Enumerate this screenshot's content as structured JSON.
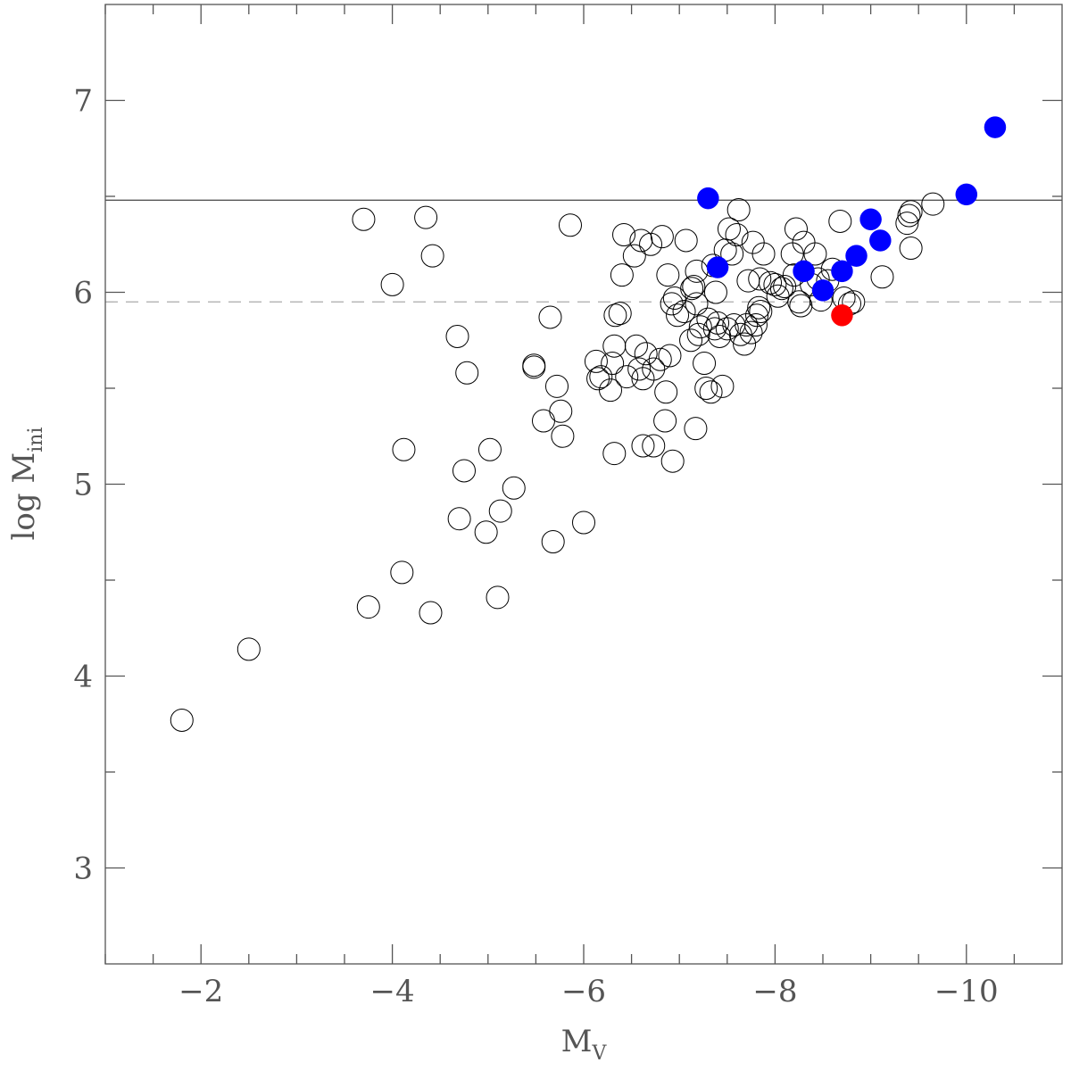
{
  "chart_data": {
    "type": "scatter",
    "title": "",
    "xlabel": "M",
    "xlabel_sub": "V",
    "ylabel": "log M",
    "ylabel_sub": "ini",
    "xlim": [
      -1.0,
      -11.0
    ],
    "ylim": [
      2.5,
      7.5
    ],
    "x_ticks": [
      -2,
      -4,
      -6,
      -8,
      -10
    ],
    "x_tick_labels": [
      "−2",
      "−4",
      "−6",
      "−8",
      "−10"
    ],
    "y_ticks": [
      3,
      4,
      5,
      6,
      7
    ],
    "y_tick_labels": [
      "3",
      "4",
      "5",
      "6",
      "7"
    ],
    "grid": false,
    "reference_lines": [
      {
        "orientation": "horizontal",
        "y": 6.48,
        "style": "solid",
        "color": "#555555"
      },
      {
        "orientation": "horizontal",
        "y": 5.95,
        "style": "dashed",
        "color": "#aaaaaa"
      }
    ],
    "series": [
      {
        "marker": "open-circle",
        "color": "#000000",
        "points": [
          [
            -1.8,
            3.77
          ],
          [
            -2.5,
            4.14
          ],
          [
            -3.75,
            4.36
          ],
          [
            -3.7,
            6.38
          ],
          [
            -4.0,
            6.04
          ],
          [
            -4.1,
            4.54
          ],
          [
            -4.12,
            5.18
          ],
          [
            -4.35,
            6.39
          ],
          [
            -4.4,
            4.33
          ],
          [
            -4.42,
            6.19
          ],
          [
            -4.68,
            5.77
          ],
          [
            -4.7,
            4.82
          ],
          [
            -4.75,
            5.07
          ],
          [
            -4.78,
            5.58
          ],
          [
            -4.98,
            4.75
          ],
          [
            -5.02,
            5.18
          ],
          [
            -5.1,
            4.41
          ],
          [
            -5.13,
            4.86
          ],
          [
            -5.27,
            4.98
          ],
          [
            -5.48,
            5.61
          ],
          [
            -5.48,
            5.62
          ],
          [
            -5.58,
            5.33
          ],
          [
            -5.65,
            5.87
          ],
          [
            -5.68,
            4.7
          ],
          [
            -5.72,
            5.51
          ],
          [
            -5.76,
            5.38
          ],
          [
            -5.78,
            5.25
          ],
          [
            -5.86,
            6.35
          ],
          [
            -6.0,
            4.8
          ],
          [
            -6.13,
            5.64
          ],
          [
            -6.15,
            5.55
          ],
          [
            -6.18,
            5.56
          ],
          [
            -6.28,
            5.49
          ],
          [
            -6.3,
            5.63
          ],
          [
            -6.32,
            5.16
          ],
          [
            -6.32,
            5.72
          ],
          [
            -6.33,
            5.88
          ],
          [
            -6.38,
            5.89
          ],
          [
            -6.4,
            6.09
          ],
          [
            -6.42,
            6.3
          ],
          [
            -6.45,
            5.56
          ],
          [
            -6.53,
            6.19
          ],
          [
            -6.55,
            5.72
          ],
          [
            -6.58,
            5.6
          ],
          [
            -6.6,
            6.27
          ],
          [
            -6.62,
            5.2
          ],
          [
            -6.62,
            5.55
          ],
          [
            -6.65,
            5.68
          ],
          [
            -6.7,
            6.25
          ],
          [
            -6.73,
            5.2
          ],
          [
            -6.73,
            5.6
          ],
          [
            -6.8,
            5.65
          ],
          [
            -6.82,
            6.29
          ],
          [
            -6.85,
            5.33
          ],
          [
            -6.86,
            5.48
          ],
          [
            -6.88,
            6.09
          ],
          [
            -6.9,
            5.67
          ],
          [
            -6.92,
            5.94
          ],
          [
            -6.93,
            5.12
          ],
          [
            -6.95,
            5.97
          ],
          [
            -6.98,
            5.88
          ],
          [
            -7.05,
            5.9
          ],
          [
            -7.07,
            6.27
          ],
          [
            -7.12,
            5.75
          ],
          [
            -7.13,
            6.02
          ],
          [
            -7.15,
            6.03
          ],
          [
            -7.17,
            5.29
          ],
          [
            -7.18,
            5.94
          ],
          [
            -7.18,
            6.11
          ],
          [
            -7.2,
            5.78
          ],
          [
            -7.22,
            5.82
          ],
          [
            -7.26,
            5.63
          ],
          [
            -7.28,
            5.5
          ],
          [
            -7.3,
            5.86
          ],
          [
            -7.33,
            5.48
          ],
          [
            -7.35,
            6.14
          ],
          [
            -7.37,
            5.81
          ],
          [
            -7.38,
            6.0
          ],
          [
            -7.4,
            5.84
          ],
          [
            -7.42,
            5.77
          ],
          [
            -7.45,
            5.51
          ],
          [
            -7.48,
            6.22
          ],
          [
            -7.5,
            5.81
          ],
          [
            -7.52,
            6.33
          ],
          [
            -7.55,
            6.2
          ],
          [
            -7.57,
            5.83
          ],
          [
            -7.6,
            6.3
          ],
          [
            -7.62,
            6.43
          ],
          [
            -7.64,
            5.78
          ],
          [
            -7.68,
            5.73
          ],
          [
            -7.7,
            5.83
          ],
          [
            -7.72,
            6.06
          ],
          [
            -7.75,
            5.79
          ],
          [
            -7.77,
            6.26
          ],
          [
            -7.8,
            5.83
          ],
          [
            -7.81,
            5.88
          ],
          [
            -7.83,
            5.92
          ],
          [
            -7.84,
            6.07
          ],
          [
            -7.85,
            5.9
          ],
          [
            -7.88,
            6.2
          ],
          [
            -7.95,
            6.05
          ],
          [
            -8.0,
            6.04
          ],
          [
            -8.03,
            5.98
          ],
          [
            -8.07,
            6.02
          ],
          [
            -8.1,
            6.03
          ],
          [
            -8.18,
            6.2
          ],
          [
            -8.2,
            6.09
          ],
          [
            -8.22,
            6.33
          ],
          [
            -8.25,
            5.95
          ],
          [
            -8.27,
            5.93
          ],
          [
            -8.3,
            6.26
          ],
          [
            -8.38,
            6.04
          ],
          [
            -8.42,
            6.2
          ],
          [
            -8.45,
            6.07
          ],
          [
            -8.48,
            5.96
          ],
          [
            -8.55,
            6.06
          ],
          [
            -8.6,
            6.12
          ],
          [
            -8.68,
            6.37
          ],
          [
            -8.72,
            5.97
          ],
          [
            -8.78,
            5.94
          ],
          [
            -8.82,
            5.95
          ],
          [
            -9.12,
            6.08
          ],
          [
            -9.38,
            6.36
          ],
          [
            -9.4,
            6.4
          ],
          [
            -9.42,
            6.42
          ],
          [
            -9.42,
            6.23
          ],
          [
            -9.65,
            6.46
          ]
        ]
      },
      {
        "marker": "filled-circle",
        "color": "#0000ff",
        "points": [
          [
            -7.3,
            6.49
          ],
          [
            -7.4,
            6.13
          ],
          [
            -8.3,
            6.11
          ],
          [
            -8.5,
            6.01
          ],
          [
            -8.7,
            6.11
          ],
          [
            -8.85,
            6.19
          ],
          [
            -9.0,
            6.38
          ],
          [
            -9.1,
            6.27
          ],
          [
            -10.0,
            6.51
          ],
          [
            -10.3,
            6.86
          ]
        ]
      },
      {
        "marker": "filled-circle",
        "color": "#ff0000",
        "points": [
          [
            -8.7,
            5.88
          ]
        ]
      }
    ]
  }
}
